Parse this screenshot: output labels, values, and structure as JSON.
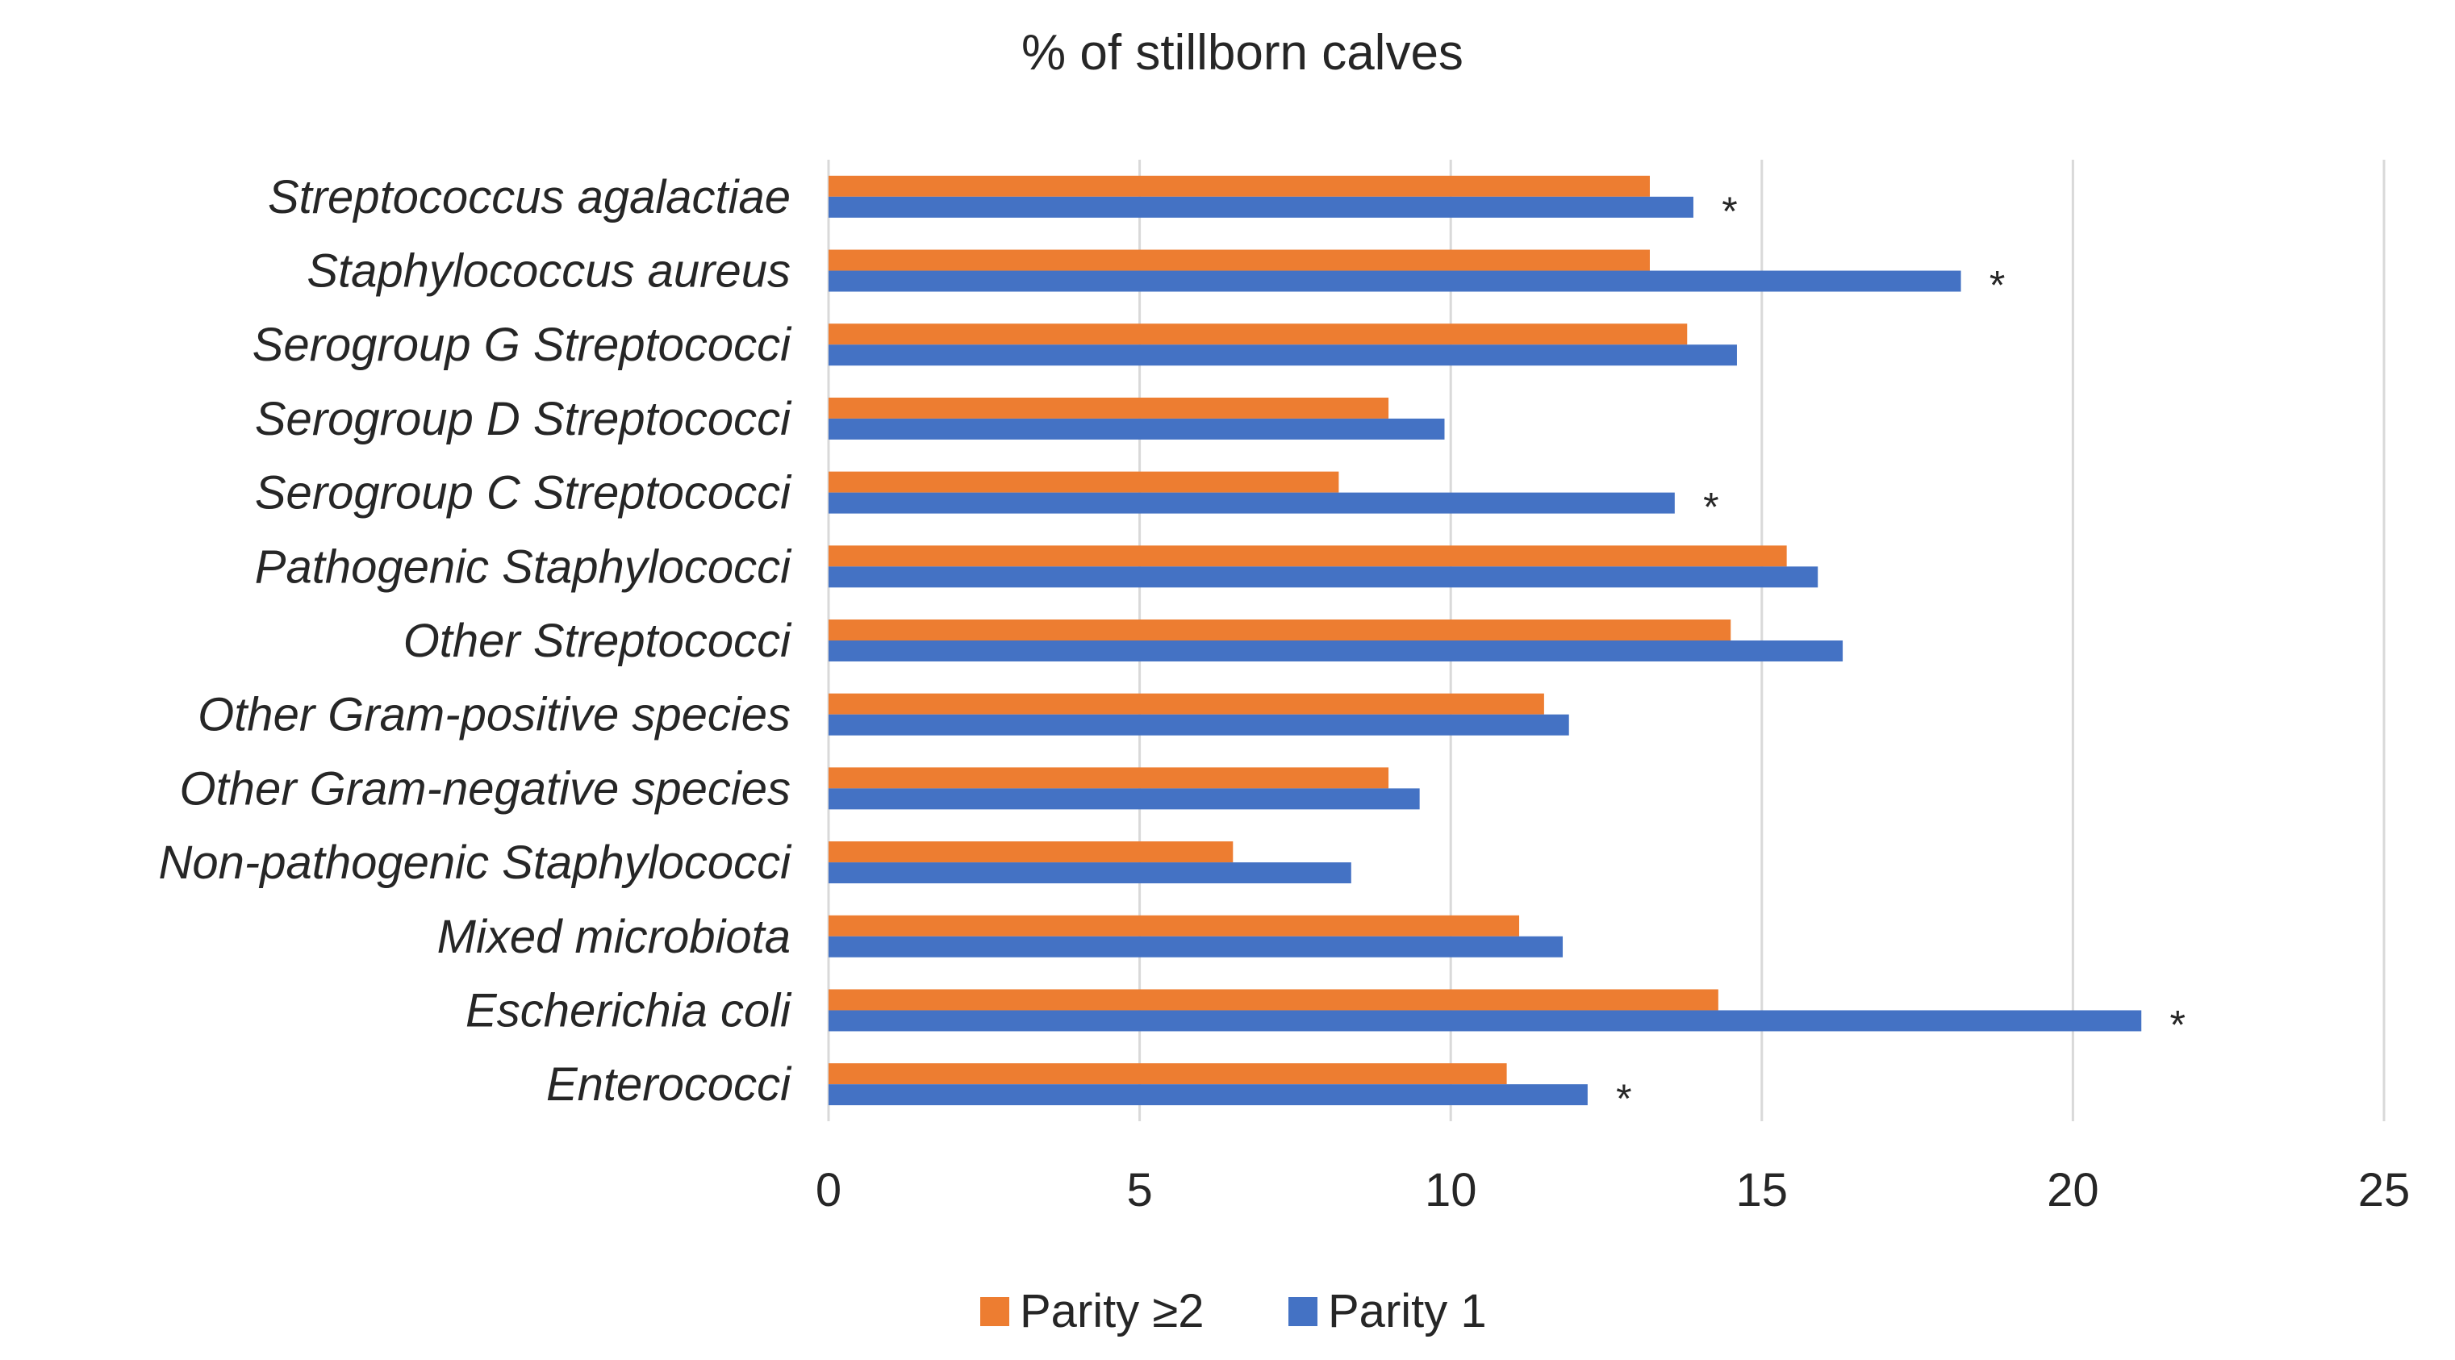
{
  "chart_data": {
    "type": "bar",
    "orientation": "horizontal",
    "title": "% of stillborn calves",
    "xlabel": "",
    "ylabel": "",
    "xlim": [
      0,
      25
    ],
    "x_ticks": [
      0,
      5,
      10,
      15,
      20,
      25
    ],
    "grid": true,
    "legend_position": "bottom",
    "categories": [
      "Streptococcus agalactiae",
      "Staphylococcus aureus",
      "Serogroup G  Streptococci",
      "Serogroup D  Streptococci",
      "Serogroup C  Streptococci",
      "Pathogenic Staphylococci",
      "Other Streptococci",
      "Other Gram-positive species",
      "Other Gram-negative species",
      "Non-pathogenic Staphylococci",
      "Mixed microbiota",
      "Escherichia coli",
      "Enterococci"
    ],
    "series": [
      {
        "name": "Parity ≥2",
        "color": "#ED7D31",
        "values": [
          13.2,
          13.2,
          13.8,
          9.0,
          8.2,
          15.4,
          14.5,
          11.5,
          9.0,
          6.5,
          11.1,
          14.3,
          10.9
        ]
      },
      {
        "name": "Parity 1",
        "color": "#4472C4",
        "values": [
          13.9,
          18.2,
          14.6,
          9.9,
          13.6,
          15.9,
          16.3,
          11.9,
          9.5,
          8.4,
          11.8,
          21.1,
          12.2
        ]
      }
    ],
    "significance_marker": "*",
    "significant": [
      true,
      true,
      false,
      false,
      true,
      false,
      false,
      false,
      false,
      false,
      false,
      true,
      true
    ]
  }
}
